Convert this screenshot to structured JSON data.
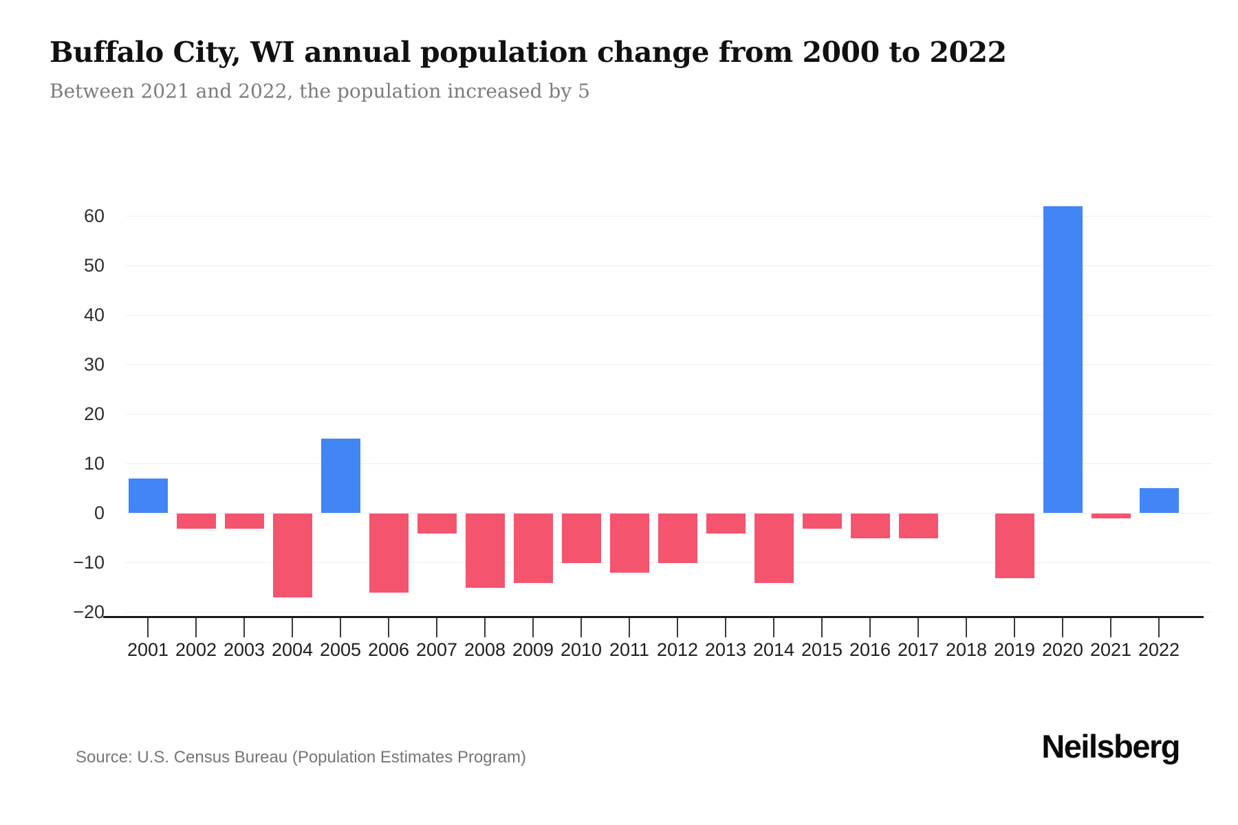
{
  "header": {
    "title": "Buffalo City, WI annual population change from 2000 to 2022",
    "subtitle": "Between 2021 and 2022, the population increased by 5"
  },
  "chart_data": {
    "type": "bar",
    "title": "Buffalo City, WI annual population change from 2000 to 2022",
    "subtitle": "Between 2021 and 2022, the population increased by 5",
    "categories": [
      "2001",
      "2002",
      "2003",
      "2004",
      "2005",
      "2006",
      "2007",
      "2008",
      "2009",
      "2010",
      "2011",
      "2012",
      "2013",
      "2014",
      "2015",
      "2016",
      "2017",
      "2018",
      "2019",
      "2020",
      "2021",
      "2022"
    ],
    "values": [
      7,
      -3,
      -3,
      -17,
      15,
      -16,
      -4,
      -15,
      -14,
      -10,
      -12,
      -10,
      -4,
      -14,
      -3,
      -5,
      -5,
      0,
      -13,
      62,
      -1,
      5
    ],
    "xlabel": "",
    "ylabel": "",
    "ylim": [
      -20,
      65
    ],
    "yticks": [
      60,
      50,
      40,
      30,
      20,
      10,
      0,
      -10,
      -20
    ],
    "ytick_labels": [
      "60",
      "50",
      "40",
      "30",
      "20",
      "10",
      "0",
      "−10",
      "−20"
    ],
    "grid": "horizontal",
    "legend": "none",
    "colors": {
      "positive_bar": "#4285F4",
      "negative_bar": "#F4546E",
      "gridline": "#efefef",
      "axis_line": "#1a1a1a",
      "title_text": "#111111",
      "subtitle_text": "#7c7c7c",
      "source_text": "#757575"
    }
  },
  "footer": {
    "source": "Source: U.S. Census Bureau (Population Estimates Program)",
    "logo": "Neilsberg"
  }
}
